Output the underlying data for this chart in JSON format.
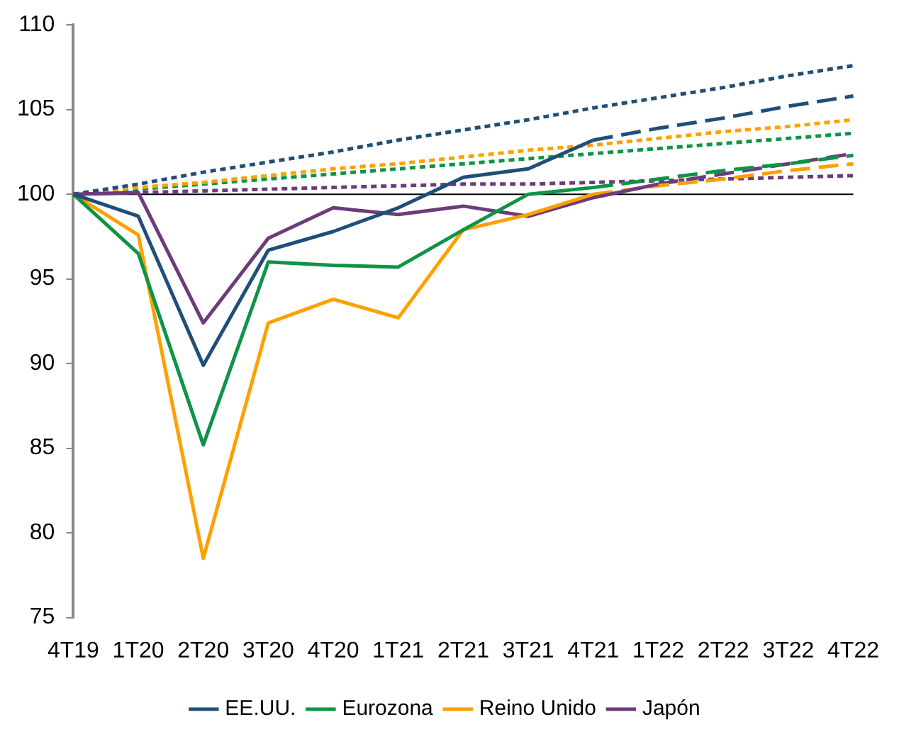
{
  "chart_data": {
    "type": "line",
    "categories": [
      "4T19",
      "1T20",
      "2T20",
      "3T20",
      "4T20",
      "1T21",
      "2T21",
      "3T21",
      "4T21",
      "1T22",
      "2T22",
      "3T22",
      "4T22"
    ],
    "ylim": [
      75,
      110
    ],
    "yticks": [
      75,
      80,
      85,
      90,
      95,
      100,
      105,
      110
    ],
    "grid": false,
    "legend": "bottom",
    "marker": "none",
    "ref_lines": [
      {
        "axis": "y",
        "value": 100,
        "color": "#000000",
        "line_style": "solid"
      }
    ],
    "series": [
      {
        "name": "EE.UU.",
        "color": "#1f4e79",
        "line_style": "solid",
        "values": [
          100,
          98.7,
          89.9,
          96.7,
          97.8,
          99.2,
          101.0,
          101.5,
          103.2,
          null,
          null,
          null,
          null
        ]
      },
      {
        "name": "Eurozona",
        "color": "#0e9447",
        "line_style": "solid",
        "values": [
          100,
          96.5,
          85.2,
          96.0,
          95.8,
          95.7,
          97.9,
          100.0,
          100.4,
          null,
          null,
          null,
          null
        ]
      },
      {
        "name": "Reino Unido",
        "color": "#ffa000",
        "line_style": "solid",
        "values": [
          100,
          97.6,
          78.5,
          92.4,
          93.8,
          92.7,
          97.9,
          98.8,
          100.0,
          null,
          null,
          null,
          null
        ]
      },
      {
        "name": "Japón",
        "color": "#6b3c7a",
        "line_style": "solid",
        "values": [
          100,
          100.1,
          92.4,
          97.4,
          99.2,
          98.8,
          99.3,
          98.7,
          99.8,
          100.6,
          null,
          null,
          null
        ]
      },
      {
        "color": "#1f4e79",
        "line_style": "dashed",
        "values": [
          null,
          null,
          null,
          null,
          null,
          null,
          null,
          null,
          103.2,
          103.9,
          104.5,
          105.2,
          105.8
        ]
      },
      {
        "color": "#0e9447",
        "line_style": "dashed",
        "values": [
          null,
          null,
          null,
          null,
          null,
          null,
          null,
          null,
          100.4,
          100.9,
          101.4,
          101.8,
          102.3
        ]
      },
      {
        "color": "#ffa000",
        "line_style": "dashed",
        "values": [
          null,
          null,
          null,
          null,
          null,
          null,
          null,
          null,
          100.0,
          100.5,
          100.9,
          101.4,
          101.8
        ]
      },
      {
        "color": "#6b3c7a",
        "line_style": "dashed",
        "values": [
          null,
          null,
          null,
          null,
          null,
          null,
          null,
          null,
          null,
          100.6,
          101.2,
          101.8,
          102.4
        ]
      },
      {
        "color": "#1f4e79",
        "line_style": "dotted",
        "values": [
          100,
          100.6,
          101.3,
          101.9,
          102.5,
          103.2,
          103.8,
          104.4,
          105.1,
          105.7,
          106.3,
          107.0,
          107.6
        ]
      },
      {
        "color": "#ffa000",
        "line_style": "dotted",
        "values": [
          100,
          100.4,
          100.7,
          101.1,
          101.5,
          101.8,
          102.2,
          102.6,
          102.9,
          103.3,
          103.7,
          104.0,
          104.4
        ]
      },
      {
        "color": "#0e9447",
        "line_style": "dotted",
        "values": [
          100,
          100.3,
          100.6,
          100.9,
          101.2,
          101.5,
          101.8,
          102.1,
          102.4,
          102.7,
          103.0,
          103.3,
          103.6
        ]
      },
      {
        "color": "#6b3c7a",
        "line_style": "dotted",
        "values": [
          100,
          100.1,
          100.2,
          100.3,
          100.4,
          100.5,
          100.6,
          100.6,
          100.7,
          100.8,
          100.9,
          101.0,
          101.1
        ]
      }
    ]
  }
}
